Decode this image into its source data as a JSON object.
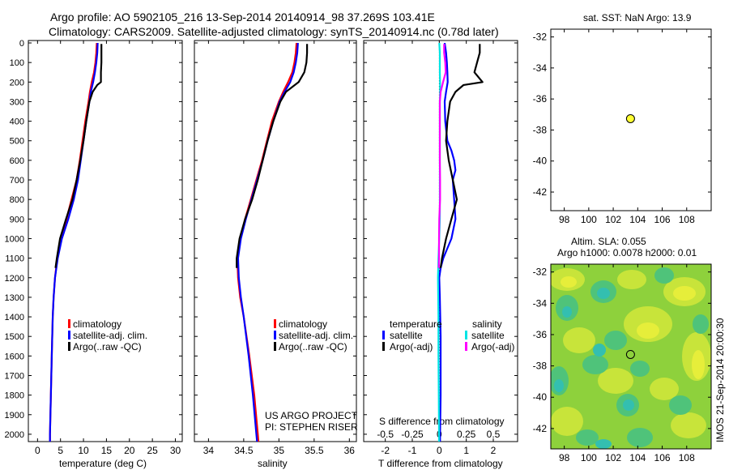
{
  "title": {
    "line1": "Argo profile: AO 5902105_216 13-Sep-2014 20140914_98 37.269S 103.41E",
    "line2": "Climatology: CARS2009. Satellite-adjusted climatology: synTS_20140914.nc (0.78d later)"
  },
  "colors": {
    "climatology": "#ff0000",
    "satellite": "#0000ff",
    "argo": "#000000",
    "sat_salinity": "#00e5e5",
    "argo_salinity": "#ff00ff",
    "marker": "#ffff33"
  },
  "legend_temp": {
    "climatology": "climatology",
    "satellite": "satellite-adj. clim.",
    "argo": "Argo(..raw -QC)"
  },
  "legend_sal": {
    "climatology": "climatology",
    "satellite": "satellite-adj. clim.",
    "argo": "Argo(..raw -QC)"
  },
  "legend_diff": {
    "temp_header": "temperature",
    "sal_header": "salinity",
    "temp_sat": "satellite",
    "temp_argo": "Argo(-adj)",
    "sal_sat": "satellite",
    "sal_argo": "Argo(-adj)"
  },
  "credits": {
    "line1": "US ARGO PROJECT",
    "line2": "PI: STEPHEN RISER"
  },
  "diff_top_label": "S difference from climatology",
  "map_top_title": "sat. SST: NaN Argo: 13.9",
  "map_bottom_title1": "Altim. SLA: 0.055",
  "map_bottom_title2": "Argo h1000: 0.0078 h2000: 0.01",
  "timestamp": "IMOS 21-Sep-2014 20:00:30",
  "chart_data": [
    {
      "type": "line",
      "panel": "temperature",
      "xlabel": "temperature (deg C)",
      "ylabel": "",
      "xlim": [
        -2,
        31.5
      ],
      "ylim": [
        2050,
        0
      ],
      "xticks": [
        0,
        5,
        10,
        15,
        20,
        25,
        30
      ],
      "yticks": [
        0,
        100,
        200,
        300,
        400,
        500,
        600,
        700,
        800,
        900,
        1000,
        1100,
        1200,
        1300,
        1400,
        1500,
        1600,
        1700,
        1800,
        1900,
        2000
      ],
      "series": [
        {
          "name": "climatology",
          "depth": [
            0,
            50,
            100,
            150,
            200,
            250,
            300,
            400,
            500,
            600,
            700,
            800,
            900,
            1000,
            1100,
            1200,
            1300,
            1400,
            1600,
            1800,
            2000,
            2040
          ],
          "values": [
            12.9,
            12.8,
            12.6,
            12.3,
            11.8,
            11.4,
            11.1,
            10.4,
            9.8,
            9.2,
            8.5,
            7.4,
            6.3,
            5.1,
            4.3,
            3.8,
            3.5,
            3.3,
            3.1,
            2.9,
            2.7,
            2.7
          ]
        },
        {
          "name": "satellite-adj. clim.",
          "depth": [
            0,
            50,
            100,
            150,
            200,
            250,
            300,
            400,
            500,
            600,
            700,
            800,
            900,
            1000,
            1100,
            1200,
            1300,
            1400,
            1600,
            1800,
            2000,
            2040
          ],
          "values": [
            13.1,
            13.0,
            12.8,
            12.5,
            12.1,
            11.6,
            11.3,
            10.6,
            10.0,
            9.4,
            8.8,
            7.9,
            6.7,
            5.3,
            4.4,
            3.8,
            3.5,
            3.3,
            3.1,
            2.9,
            2.7,
            2.7
          ]
        },
        {
          "name": "Argo(..raw -QC)",
          "depth": [
            5,
            50,
            100,
            150,
            200,
            215,
            250,
            300,
            400,
            500,
            600,
            700,
            800,
            900,
            1000,
            1100,
            1150
          ],
          "values": [
            13.9,
            13.9,
            13.9,
            13.8,
            13.8,
            13.0,
            12.0,
            11.3,
            10.6,
            10.0,
            9.3,
            8.5,
            7.6,
            6.2,
            4.9,
            4.2,
            3.9
          ]
        }
      ]
    },
    {
      "type": "line",
      "panel": "salinity",
      "xlabel": "salinity",
      "ylabel": "",
      "xlim": [
        33.8,
        36.1
      ],
      "ylim": [
        2050,
        0
      ],
      "xticks": [
        34,
        34.5,
        35,
        35.5,
        36
      ],
      "series": [
        {
          "name": "climatology",
          "depth": [
            0,
            50,
            100,
            150,
            200,
            250,
            300,
            400,
            500,
            600,
            700,
            800,
            900,
            1000,
            1100,
            1200,
            1300,
            1400,
            1600,
            1800,
            2000,
            2040
          ],
          "values": [
            35.25,
            35.24,
            35.22,
            35.19,
            35.13,
            35.06,
            35.0,
            34.9,
            34.83,
            34.76,
            34.68,
            34.6,
            34.52,
            34.45,
            34.41,
            34.42,
            34.45,
            34.5,
            34.58,
            34.65,
            34.7,
            34.71
          ]
        },
        {
          "name": "satellite-adj. clim.",
          "depth": [
            0,
            50,
            100,
            150,
            200,
            250,
            300,
            400,
            500,
            600,
            700,
            800,
            900,
            1000,
            1100,
            1200,
            1300,
            1400,
            1600,
            1800,
            2000,
            2040
          ],
          "values": [
            35.27,
            35.26,
            35.24,
            35.21,
            35.16,
            35.08,
            35.01,
            34.92,
            34.84,
            34.77,
            34.69,
            34.61,
            34.53,
            34.46,
            34.42,
            34.43,
            34.46,
            34.5,
            34.57,
            34.63,
            34.68,
            34.69
          ]
        },
        {
          "name": "Argo(..raw -QC)",
          "depth": [
            5,
            50,
            100,
            150,
            200,
            250,
            300,
            400,
            500,
            600,
            700,
            800,
            900,
            1000,
            1100,
            1150
          ],
          "values": [
            35.4,
            35.4,
            35.39,
            35.36,
            35.28,
            35.1,
            35.02,
            34.92,
            34.84,
            34.77,
            34.7,
            34.62,
            34.52,
            34.44,
            34.4,
            34.4
          ]
        }
      ]
    },
    {
      "type": "line",
      "panel": "difference",
      "xlabel": "T difference from climatology",
      "xlim": [
        -2.8,
        2.9
      ],
      "ylim": [
        2050,
        0
      ],
      "xticks": [
        -2,
        -1,
        0,
        1,
        2
      ],
      "xtick_labels": [
        "-2",
        "-1",
        "0",
        "1",
        "2"
      ],
      "top_ticks": [
        -0.5,
        -0.25,
        0,
        0.25,
        0.5
      ],
      "top_tick_labels": [
        "-0.5",
        "-0.25",
        "0",
        "0.25",
        "0.5"
      ],
      "series": [
        {
          "name": "temperature satellite",
          "depth": [
            0,
            50,
            100,
            150,
            200,
            250,
            300,
            400,
            500,
            550,
            600,
            650,
            700,
            800,
            900,
            1000,
            1050,
            1100,
            1150,
            1200,
            1300,
            1500,
            1800,
            2000,
            2040
          ],
          "values": [
            0.2,
            0.25,
            0.28,
            0.3,
            0.31,
            0.25,
            0.2,
            0.22,
            0.3,
            0.45,
            0.55,
            0.6,
            0.5,
            0.55,
            0.6,
            0.45,
            0.3,
            0.15,
            0.05,
            0.0,
            0.02,
            0.05,
            0.05,
            0.03,
            0.03
          ]
        },
        {
          "name": "temperature Argo(-adj)",
          "depth": [
            5,
            50,
            100,
            150,
            200,
            215,
            250,
            300,
            400,
            500,
            600,
            700,
            800,
            900,
            1000,
            1100,
            1150
          ],
          "values": [
            1.5,
            1.5,
            1.4,
            1.3,
            1.6,
            0.9,
            0.6,
            0.4,
            0.3,
            0.25,
            0.35,
            0.5,
            0.65,
            0.45,
            0.25,
            0.1,
            0.05
          ]
        },
        {
          "name": "salinity satellite",
          "depth": [
            0,
            50,
            100,
            150,
            200,
            250,
            300,
            400,
            500,
            600,
            700,
            800,
            900,
            1000,
            1100,
            1200,
            1300,
            1400,
            1600,
            1800,
            2000,
            2040
          ],
          "values": [
            0.0,
            0.02,
            0.02,
            0.02,
            0.03,
            0.03,
            0.02,
            0.02,
            0.02,
            0.02,
            0.02,
            0.02,
            0.02,
            0.0,
            -0.03,
            -0.05,
            -0.04,
            -0.03,
            -0.03,
            -0.02,
            -0.01,
            -0.01
          ]
        },
        {
          "name": "salinity Argo(-adj)",
          "depth": [
            5,
            50,
            100,
            150,
            200,
            250,
            300,
            400,
            500,
            600,
            700,
            800,
            900,
            1000,
            1100,
            1150
          ],
          "values": [
            0.18,
            0.18,
            0.22,
            0.24,
            0.14,
            0.05,
            0.02,
            0.02,
            0.02,
            0.02,
            0.03,
            0.03,
            0.0,
            -0.01,
            -0.01,
            -0.02
          ]
        }
      ]
    }
  ],
  "map_top": {
    "lon_ticks": [
      98,
      100,
      102,
      104,
      106,
      108
    ],
    "lat_ticks": [
      -32,
      -34,
      -36,
      -38,
      -40,
      -42
    ],
    "xlim": [
      96.9,
      110
    ],
    "ylim": [
      -43.2,
      -31.5
    ],
    "marker": {
      "lon": 103.41,
      "lat": -37.269
    }
  },
  "map_bottom": {
    "lon_ticks": [
      98,
      100,
      102,
      104,
      106,
      108
    ],
    "lat_ticks": [
      -32,
      -34,
      -36,
      -38,
      -40,
      -42
    ],
    "xlim": [
      96.9,
      110
    ],
    "ylim": [
      -43.3,
      -31.5
    ],
    "marker": {
      "lon": 103.41,
      "lat": -37.269
    }
  }
}
